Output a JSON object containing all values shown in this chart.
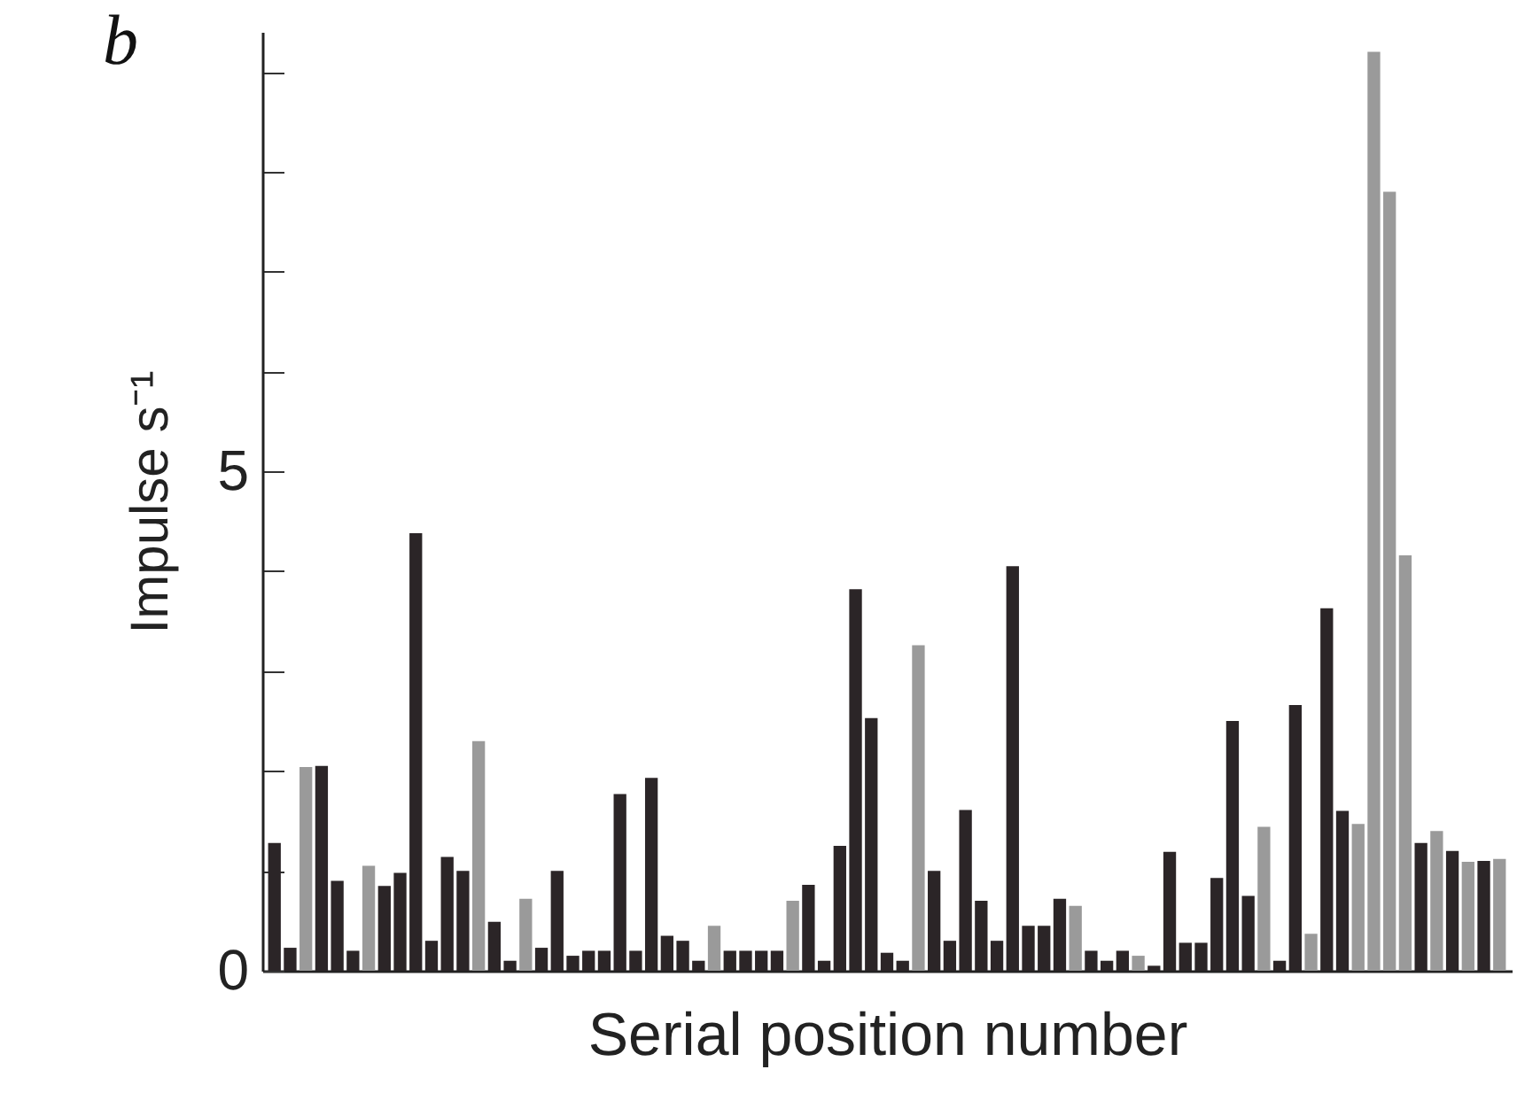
{
  "chart_data": {
    "type": "bar",
    "title": "b",
    "xlabel": "Serial position number",
    "ylabel": "Impulse s⁻¹",
    "categories": [
      null,
      null,
      null,
      null,
      null,
      null,
      null,
      null,
      null,
      null,
      null,
      null,
      null,
      null,
      null,
      null,
      null,
      null,
      null,
      null,
      null,
      null,
      null,
      null,
      null,
      null,
      null,
      null,
      null,
      null,
      null,
      null,
      null,
      null,
      null,
      null,
      null,
      null,
      null,
      null,
      null,
      null,
      null,
      null,
      null,
      null,
      null,
      null,
      null,
      null,
      null,
      null,
      null,
      null,
      null,
      null,
      null,
      null,
      null,
      null,
      null,
      null,
      null,
      null,
      null,
      null,
      null,
      null,
      null,
      null,
      null,
      null,
      null,
      null,
      null,
      null,
      null,
      null,
      null
    ],
    "values": [
      1.28,
      0.23,
      2.04,
      2.05,
      0.9,
      0.2,
      1.05,
      0.85,
      0.98,
      4.38,
      0.3,
      1.14,
      1.0,
      2.3,
      0.49,
      0.1,
      0.72,
      0.23,
      1.0,
      0.15,
      0.2,
      0.2,
      1.77,
      0.2,
      1.93,
      0.35,
      0.3,
      0.1,
      0.45,
      0.2,
      0.2,
      0.2,
      0.2,
      0.7,
      0.86,
      0.1,
      1.25,
      3.82,
      2.53,
      0.18,
      0.1,
      3.26,
      1.0,
      0.3,
      1.61,
      0.7,
      0.3,
      4.05,
      0.45,
      0.45,
      0.72,
      0.65,
      0.2,
      0.1,
      0.2,
      0.15,
      0.05,
      1.19,
      0.28,
      0.28,
      0.93,
      2.5,
      0.75,
      1.44,
      0.1,
      2.66,
      0.37,
      3.63,
      1.6,
      1.47,
      9.2,
      7.8,
      4.16,
      1.28,
      1.4,
      1.2,
      1.09,
      1.1,
      1.12
    ],
    "colors": [
      "#2b2527",
      "#2b2527",
      "#9a9a9a",
      "#2b2527",
      "#2b2527",
      "#2b2527",
      "#9a9a9a",
      "#2b2527",
      "#2b2527",
      "#2b2527",
      "#2b2527",
      "#2b2527",
      "#2b2527",
      "#9a9a9a",
      "#2b2527",
      "#2b2527",
      "#9a9a9a",
      "#2b2527",
      "#2b2527",
      "#2b2527",
      "#2b2527",
      "#2b2527",
      "#2b2527",
      "#2b2527",
      "#2b2527",
      "#2b2527",
      "#2b2527",
      "#2b2527",
      "#9a9a9a",
      "#2b2527",
      "#2b2527",
      "#2b2527",
      "#2b2527",
      "#9a9a9a",
      "#2b2527",
      "#2b2527",
      "#2b2527",
      "#2b2527",
      "#2b2527",
      "#2b2527",
      "#2b2527",
      "#9a9a9a",
      "#2b2527",
      "#2b2527",
      "#2b2527",
      "#2b2527",
      "#2b2527",
      "#2b2527",
      "#2b2527",
      "#2b2527",
      "#2b2527",
      "#9a9a9a",
      "#2b2527",
      "#2b2527",
      "#2b2527",
      "#9a9a9a",
      "#2b2527",
      "#2b2527",
      "#2b2527",
      "#2b2527",
      "#2b2527",
      "#2b2527",
      "#2b2527",
      "#9a9a9a",
      "#2b2527",
      "#2b2527",
      "#9a9a9a",
      "#2b2527",
      "#2b2527",
      "#9a9a9a",
      "#9a9a9a",
      "#9a9a9a",
      "#9a9a9a",
      "#2b2527",
      "#9a9a9a",
      "#2b2527",
      "#9a9a9a",
      "#2b2527",
      "#9a9a9a"
    ],
    "ylim": [
      0,
      9.4
    ],
    "yticks": [
      0,
      {
        "value": 1,
        "label": null
      },
      {
        "value": 2,
        "label": null
      },
      {
        "value": 3,
        "label": null
      },
      {
        "value": 4,
        "label": null
      },
      5,
      {
        "value": 6,
        "label": null
      },
      {
        "value": 7,
        "label": null
      },
      {
        "value": 8,
        "label": null
      },
      {
        "value": 9,
        "label": null
      }
    ],
    "tick_labels": "y",
    "grid": false
  }
}
